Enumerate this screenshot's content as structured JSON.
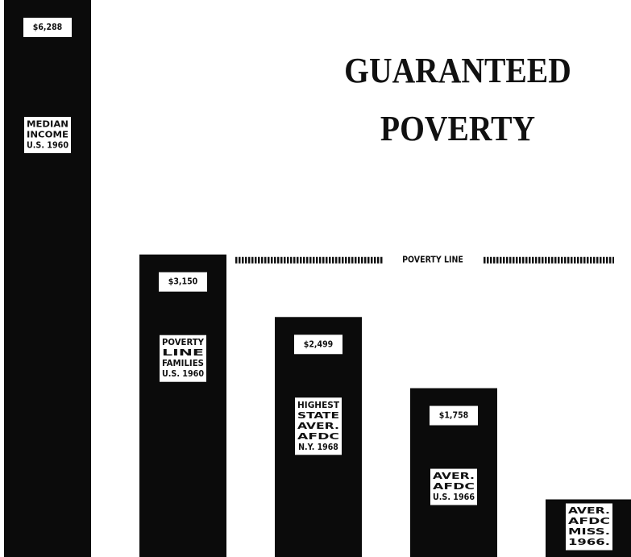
{
  "chart_data": {
    "type": "bar",
    "title": "GUARANTEED POVERTY",
    "categories": [
      [
        "MEDIAN",
        "INCOME",
        "U.S. 1960"
      ],
      [
        "POVERTY",
        "LINE",
        "FAMILIES",
        "U.S. 1960"
      ],
      [
        "HIGHEST",
        "STATE",
        "AVER.",
        "AFDC",
        "N.Y. 1968"
      ],
      [
        "AVER.",
        "AFDC",
        "U.S. 1966"
      ],
      [
        "AVER.",
        "AFDC",
        "MISS.",
        "1966."
      ]
    ],
    "values": [
      6288,
      3150,
      2499,
      1758,
      600
    ],
    "value_labels": [
      "$6,288",
      "$3,150",
      "$2,499",
      "$1,758",
      null
    ],
    "color": "#0b0b0b",
    "ylim": [
      0,
      5800
    ],
    "reference_line": {
      "value": 3150,
      "label": "POVERTY LINE"
    }
  }
}
